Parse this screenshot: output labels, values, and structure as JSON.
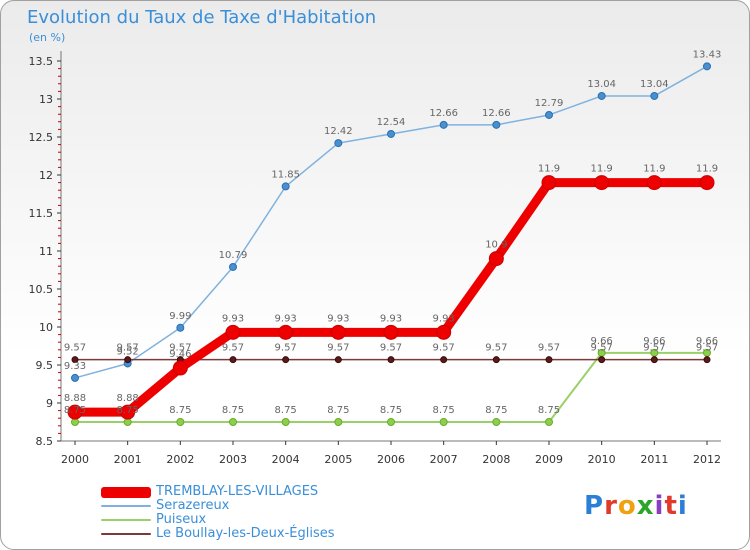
{
  "title": "Evolution du Taux de Taxe d'Habitation",
  "subtitle": "(en %)",
  "logo_text": "Proxiti",
  "logo_colors": [
    "#2c7fd4",
    "#e03a2b",
    "#f0a010",
    "#2aa52a",
    "#8a3fc0",
    "#e03a2b",
    "#2c7fd4"
  ],
  "chart_data": {
    "type": "line",
    "title": "Evolution du Taux de Taxe d'Habitation",
    "ylabel": "(en %)",
    "xlabel": "",
    "x": [
      "2000",
      "2001",
      "2002",
      "2003",
      "2004",
      "2005",
      "2006",
      "2007",
      "2008",
      "2009",
      "2010",
      "2011",
      "2012"
    ],
    "ylim": [
      8.5,
      13.5
    ],
    "yticks": [
      "8.5",
      "9",
      "9.5",
      "10",
      "10.5",
      "11",
      "11.5",
      "12",
      "12.5",
      "13",
      "13.5"
    ],
    "grid": false,
    "legend": "bottom-left",
    "series": [
      {
        "name": "TREMBLAY-LES-VILLAGES",
        "color": "#ee0000",
        "values": [
          8.88,
          8.88,
          9.46,
          9.93,
          9.93,
          9.93,
          9.93,
          9.93,
          10.9,
          11.9,
          11.9,
          11.9,
          11.9
        ],
        "labels": [
          "8.88",
          "8.88",
          "9.46",
          "9.93",
          "9.93",
          "9.93",
          "9.93",
          "9.93",
          "10.9",
          "11.9",
          "11.9",
          "11.9",
          "11.9"
        ]
      },
      {
        "name": "Serazereux",
        "color": "#7fb2df",
        "values": [
          9.33,
          9.52,
          9.99,
          10.79,
          11.85,
          12.42,
          12.54,
          12.66,
          12.66,
          12.79,
          13.04,
          13.04,
          13.43
        ],
        "labels": [
          "9.33",
          "9.52",
          "9.99",
          "10.79",
          "11.85",
          "12.42",
          "12.54",
          "12.66",
          "12.66",
          "12.79",
          "13.04",
          "13.04",
          "13.43"
        ]
      },
      {
        "name": "Puiseux",
        "color": "#9ad06a",
        "values": [
          8.75,
          8.75,
          8.75,
          8.75,
          8.75,
          8.75,
          8.75,
          8.75,
          8.75,
          8.75,
          9.66,
          9.66,
          9.66
        ],
        "labels": [
          "8.75",
          "8.75",
          "8.75",
          "8.75",
          "8.75",
          "8.75",
          "8.75",
          "8.75",
          "8.75",
          "8.75",
          "9.66",
          "9.66",
          "9.66"
        ]
      },
      {
        "name": "Le Boullay-les-Deux-Églises",
        "color": "#7a3a3a",
        "values": [
          9.57,
          9.57,
          9.57,
          9.57,
          9.57,
          9.57,
          9.57,
          9.57,
          9.57,
          9.57,
          9.57,
          9.57,
          9.57
        ],
        "labels": [
          "9.57",
          "9.57",
          "9.57",
          "9.57",
          "9.57",
          "9.57",
          "9.57",
          "9.57",
          "9.57",
          "9.57",
          "9.57",
          "9.57",
          "9.57"
        ]
      }
    ]
  }
}
